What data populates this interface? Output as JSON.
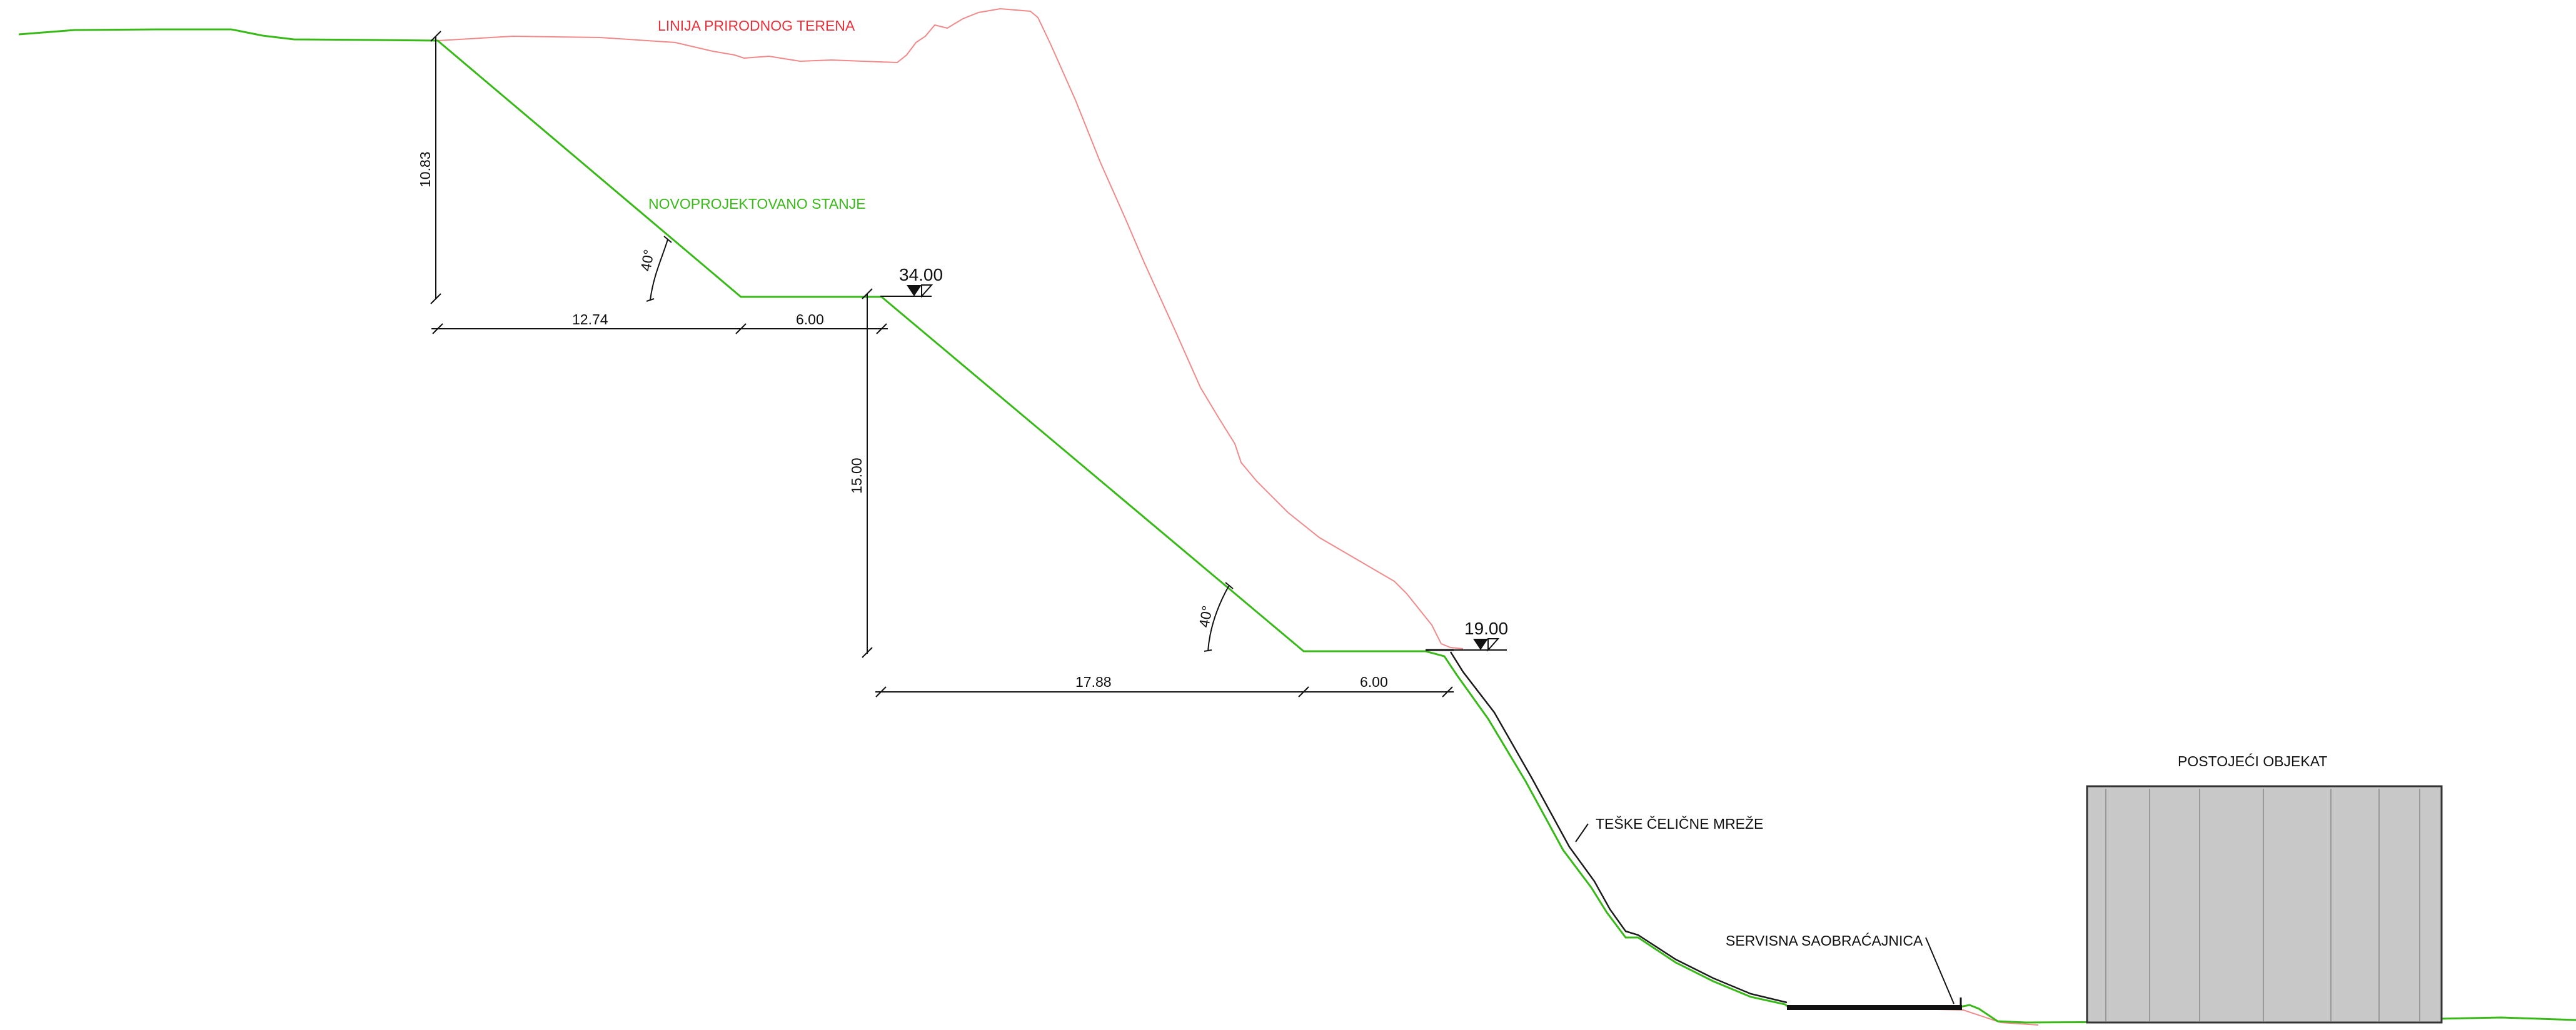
{
  "colors": {
    "terrain_line": "#f08a8a",
    "design_line": "#38b918",
    "dimension_line": "#111111",
    "label_red": "#e8303a",
    "label_green": "#38b918",
    "building_fill": "#c8c8c8",
    "building_stroke": "#333333"
  },
  "labels": {
    "natural_terrain": "LINIJA PRIRODNOG TERENA",
    "new_design": "NOVOPROJEKTOVANO STANJE",
    "steel_mesh": "TEŠKE ČELIČNE MREŽE",
    "service_road": "SERVISNA SAOBRAĆAJNICA",
    "existing_building": "POSTOJEĆI OBJEKAT"
  },
  "elevations": {
    "upper_berm": "34.00",
    "lower_berm": "19.00"
  },
  "dimensions": {
    "upper_height": "10.83",
    "lower_height": "15.00",
    "upper_slope_run": "12.74",
    "upper_berm_width": "6.00",
    "lower_slope_run": "17.88",
    "lower_berm_width": "6.00"
  },
  "angles": {
    "upper_slope": "40°",
    "lower_slope": "40°"
  }
}
